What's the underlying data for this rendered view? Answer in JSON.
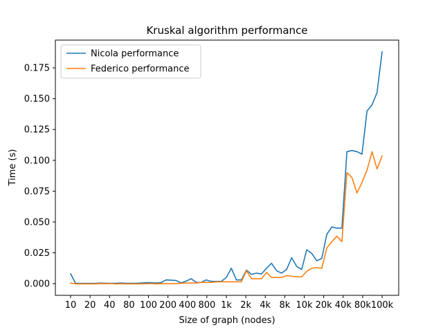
{
  "chart_data": {
    "type": "line",
    "title": "Kruskal algorithm performance",
    "xlabel": "Size of graph (nodes)",
    "ylabel": "Time (s)",
    "ylim": [
      -0.0095,
      0.1975
    ],
    "yticks": [
      0.0,
      0.025,
      0.05,
      0.075,
      0.1,
      0.125,
      0.15,
      0.175
    ],
    "ytick_labels": [
      "0.000",
      "0.025",
      "0.050",
      "0.075",
      "0.100",
      "0.125",
      "0.150",
      "0.175"
    ],
    "xtick_labels": [
      "10",
      "20",
      "40",
      "80",
      "100",
      "200",
      "400",
      "800",
      "1k",
      "2k",
      "4k",
      "8k",
      "10k",
      "20k",
      "40k",
      "80k",
      "100k"
    ],
    "grid": false,
    "legend_position": "top-left",
    "colors": {
      "nicola": "#1f77b4",
      "federico": "#ff7f0e"
    },
    "series": [
      {
        "name": "Nicola performance",
        "color": "#1f77b4",
        "values": [
          0.008,
          0.0002,
          0.0002,
          0.0002,
          0.0002,
          0.0002,
          0.0005,
          0.0003,
          0.0003,
          0.0003,
          0.0005,
          0.0003,
          0.0003,
          0.0003,
          0.0005,
          0.0008,
          0.0008,
          0.0005,
          0.0008,
          0.003,
          0.0028,
          0.0025,
          0.0006,
          0.002,
          0.004,
          0.001,
          0.001,
          0.003,
          0.0018,
          0.0018,
          0.0018,
          0.005,
          0.0125,
          0.003,
          0.003,
          0.011,
          0.0075,
          0.0085,
          0.0078,
          0.0125,
          0.0165,
          0.0105,
          0.0085,
          0.0115,
          0.021,
          0.014,
          0.0115,
          0.0275,
          0.0245,
          0.0185,
          0.0205,
          0.04,
          0.046,
          0.045,
          0.045,
          0.107,
          0.108,
          0.107,
          0.105,
          0.14,
          0.145,
          0.155,
          0.188
        ]
      },
      {
        "name": "Federico performance",
        "color": "#ff7f0e",
        "values": [
          0.0005,
          -0.0002,
          -0.0002,
          -0.0002,
          -0.0002,
          -0.0002,
          0.0001,
          -0.0001,
          0.0001,
          -0.0002,
          -0.0001,
          -0.0002,
          -0.0002,
          -0.0002,
          -0.0002,
          -0.0001,
          0.0001,
          -0.0002,
          0.0,
          0.0,
          0.0,
          0.0,
          0.0003,
          0.0005,
          0.0005,
          0.0005,
          0.001,
          0.001,
          0.001,
          0.0015,
          0.0015,
          0.0015,
          0.0015,
          0.0015,
          0.0015,
          0.0105,
          0.004,
          0.004,
          0.004,
          0.009,
          0.005,
          0.005,
          0.005,
          0.0065,
          0.006,
          0.0055,
          0.0055,
          0.01,
          0.0125,
          0.013,
          0.0125,
          0.029,
          0.034,
          0.0385,
          0.034,
          0.09,
          0.086,
          0.0735,
          0.082,
          0.092,
          0.107,
          0.093,
          0.1035
        ]
      }
    ]
  }
}
